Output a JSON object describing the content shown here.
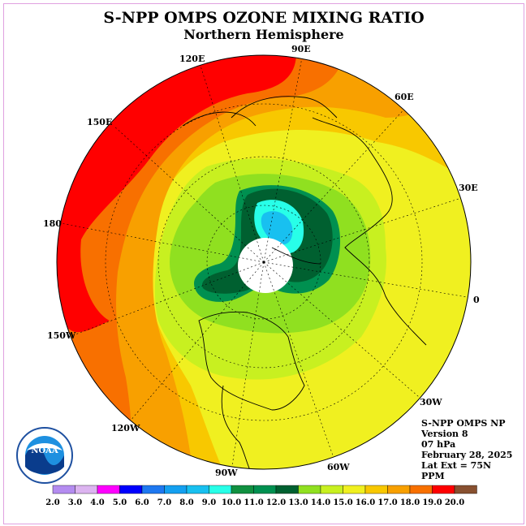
{
  "header": {
    "title": "S-NPP OMPS OZONE MIXING RATIO",
    "subtitle": "Northern Hemisphere"
  },
  "info": {
    "instrument": "S-NPP OMPS NP",
    "version": "Version 8",
    "pressure": "07 hPa",
    "date": "February 28, 2025",
    "lat_ext": "Lat Ext = 75N",
    "units": "PPM"
  },
  "longitude_labels": {
    "e120": "120E",
    "e90": "90E",
    "e60": "60E",
    "e30": "30E",
    "e0": "0",
    "w30": "30W",
    "w60": "60W",
    "w90": "90W",
    "w120": "120W",
    "w150": "150W",
    "e180": "180",
    "e150": "150E"
  },
  "logo": {
    "text": "NOAA",
    "ring_text": "NATIONAL OCEANIC AND ATMOSPHERIC ADMINISTRATION • U.S. DEPARTMENT OF COMMERCE"
  },
  "colorbar": {
    "labels": [
      "2.0",
      "3.0",
      "4.0",
      "5.0",
      "6.0",
      "7.0",
      "8.0",
      "9.0",
      "10.0",
      "11.0",
      "12.0",
      "13.0",
      "14.0",
      "15.0",
      "16.0",
      "17.0",
      "18.0",
      "19.0",
      "20.0"
    ],
    "colors": [
      "#b48cf0",
      "#dcb4f0",
      "#ff00ff",
      "#0000ff",
      "#1e78f0",
      "#14a0f0",
      "#18c0f0",
      "#28ffe8",
      "#109040",
      "#009050",
      "#006030",
      "#90e020",
      "#c8f020",
      "#f0f020",
      "#f8c800",
      "#f8a000",
      "#f87000",
      "#ff0000",
      "#885030"
    ]
  }
}
